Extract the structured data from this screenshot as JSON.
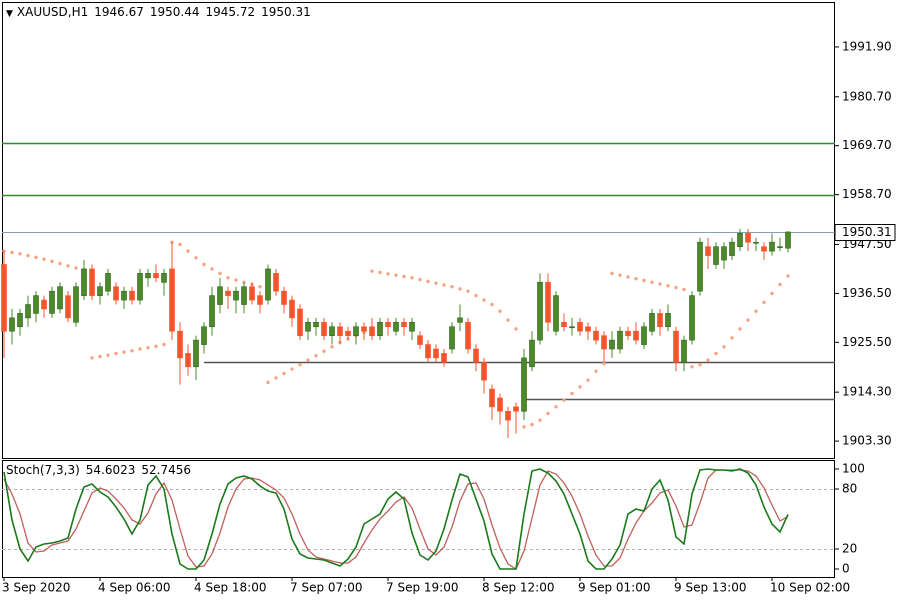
{
  "chart_data": [
    {
      "type": "candlestick",
      "title": "XAUUSD,H1",
      "x": [
        "3 Sep 2020",
        null,
        null,
        null,
        null,
        null,
        null,
        null,
        null,
        null,
        null,
        null,
        "4 Sep 06:00",
        null,
        null,
        null,
        null,
        null,
        null,
        null,
        null,
        null,
        null,
        null,
        "4 Sep 18:00",
        null,
        null,
        null,
        null,
        null,
        null,
        null,
        null,
        null,
        null,
        null,
        "7 Sep 07:00",
        null,
        null,
        null,
        null,
        null,
        null,
        null,
        null,
        null,
        null,
        null,
        "7 Sep 19:00",
        null,
        null,
        null,
        null,
        null,
        null,
        null,
        null,
        null,
        null,
        null,
        "8 Sep 12:00",
        null,
        null,
        null,
        null,
        null,
        null,
        null,
        null,
        null,
        null,
        null,
        "9 Sep 01:00",
        null,
        null,
        null,
        null,
        null,
        null,
        null,
        null,
        null,
        null,
        null,
        "9 Sep 13:00",
        null,
        null,
        null,
        null,
        null,
        null,
        null,
        null,
        null,
        null,
        null,
        "10 Sep 02:00",
        null,
        null
      ],
      "open": [
        1943,
        1928,
        1929,
        1931,
        1932,
        1935,
        1932,
        1933,
        1936,
        1930,
        1936,
        1942,
        1936,
        1937,
        1938,
        1935,
        1937,
        1935,
        1940,
        1941,
        1939,
        1942,
        1928,
        1923,
        1920,
        1925,
        1929,
        1934,
        1937,
        1935,
        1934,
        1938,
        1936,
        1935,
        1941,
        1937,
        1935,
        1933,
        1928,
        1929,
        1930,
        1927,
        1929,
        1928,
        1927,
        1929,
        1929,
        1927,
        1930,
        1928,
        1930,
        1928,
        1927,
        1925,
        1924,
        1923,
        1924,
        1930,
        1930,
        1924,
        1921,
        1915,
        1913,
        1910,
        1911,
        1910,
        1920,
        1926,
        1939,
        1928,
        1930,
        1929,
        1930,
        1929,
        1928,
        1927,
        1924,
        1924,
        1928,
        1928,
        1925,
        1928,
        1932,
        1929,
        1928,
        1921,
        1926,
        1937,
        1947,
        1943,
        1944,
        1945,
        1947,
        1950,
        1948,
        1947,
        1946,
        1947,
        1946.67
      ],
      "high": [
        1946,
        1933,
        1933,
        1936,
        1937,
        1936,
        1938,
        1939,
        1937,
        1939,
        1944,
        1943,
        1939,
        1942,
        1939,
        1938,
        1938,
        1942,
        1942,
        1943,
        1942,
        1948,
        1930,
        1925,
        1927,
        1930,
        1938,
        1940,
        1938,
        1938,
        1939,
        1939,
        1937,
        1943,
        1942,
        1938,
        1936,
        1934,
        1931,
        1931,
        1931,
        1930,
        1930,
        1929,
        1930,
        1930,
        1931,
        1931,
        1931,
        1931,
        1931,
        1931,
        1928,
        1926,
        1925,
        1924,
        1930,
        1934,
        1931,
        1925,
        1922,
        1916,
        1914,
        1911,
        1912,
        1924,
        1928,
        1941,
        1941,
        1937,
        1932,
        1931,
        1931,
        1930,
        1929,
        1928,
        1928,
        1929,
        1929,
        1930,
        1930,
        1933,
        1933,
        1934,
        1929,
        1927,
        1937,
        1949,
        1949,
        1948,
        1948,
        1949,
        1951,
        1951,
        1949,
        1948,
        1950,
        1949,
        1950.44
      ],
      "low": [
        1922,
        1925,
        1927,
        1929,
        1930,
        1931,
        1931,
        1932,
        1930,
        1929,
        1935,
        1935,
        1934,
        1936,
        1934,
        1933,
        1934,
        1934,
        1938,
        1939,
        1936,
        1926,
        1916,
        1918,
        1917,
        1923,
        1927,
        1932,
        1933,
        1932,
        1932,
        1934,
        1932,
        1934,
        1936,
        1932,
        1929,
        1926,
        1926,
        1927,
        1926,
        1925,
        1925,
        1926,
        1925,
        1926,
        1926,
        1926,
        1927,
        1927,
        1927,
        1926,
        1924,
        1921,
        1921,
        1920,
        1923,
        1928,
        1923,
        1919,
        1914,
        1908,
        1907,
        1904,
        1905,
        1908,
        1919,
        1925,
        1928,
        1927,
        1928,
        1927,
        1927,
        1926,
        1925,
        1921,
        1922,
        1923,
        1926,
        1925,
        1924,
        1927,
        1927,
        1928,
        1919,
        1919,
        1925,
        1936,
        1942,
        1942,
        1942,
        1944,
        1946,
        1946,
        1946,
        1944,
        1945,
        1946,
        1945.72
      ],
      "close": [
        1928,
        1931,
        1932,
        1934,
        1936,
        1933,
        1937,
        1938,
        1931,
        1938,
        1942,
        1936,
        1938,
        1941,
        1935,
        1937,
        1935,
        1941,
        1941,
        1940,
        1941,
        1928,
        1922,
        1920,
        1926,
        1929,
        1936,
        1938,
        1936,
        1937,
        1938,
        1935,
        1934,
        1942,
        1937,
        1934,
        1931,
        1927,
        1930,
        1930,
        1927,
        1929,
        1927,
        1927,
        1929,
        1928,
        1927,
        1930,
        1929,
        1930,
        1929,
        1930,
        1925,
        1922,
        1922,
        1921,
        1929,
        1931,
        1924,
        1921,
        1917,
        1911,
        1910,
        1908,
        1910,
        1922,
        1926,
        1939,
        1930,
        1936,
        1929,
        1929,
        1928,
        1928,
        1926,
        1924,
        1926,
        1928,
        1927,
        1926,
        1929,
        1932,
        1929,
        1932,
        1921,
        1926,
        1936,
        1948,
        1945,
        1947,
        1947,
        1948,
        1950,
        1948,
        1948,
        1946,
        1948,
        1947,
        1950.31
      ],
      "up_color": "#4a8a2a",
      "down_color": "#f2552c",
      "ylim": [
        1899.5,
        2002
      ],
      "yticks": [
        {
          "value": 1991.9,
          "label": "1991.90"
        },
        {
          "value": 1980.7,
          "label": "1980.70"
        },
        {
          "value": 1969.7,
          "label": "1969.70"
        },
        {
          "value": 1958.7,
          "label": "1958.70"
        },
        {
          "value": 1947.5,
          "label": "1947.50"
        },
        {
          "value": 1936.5,
          "label": "1936.50"
        },
        {
          "value": 1925.5,
          "label": "1925.50"
        },
        {
          "value": 1914.3,
          "label": "1914.30"
        },
        {
          "value": 1903.3,
          "label": "1903.30"
        }
      ],
      "sar": {
        "color": "#f4a383",
        "values": [
          1946,
          1945.7,
          1945.4,
          1945,
          1944.6,
          1944.2,
          1943.7,
          1943.2,
          1942.7,
          1942.2,
          1941.6,
          1922,
          1922.3,
          1922.6,
          1923,
          1923.3,
          1923.6,
          1924,
          1924.3,
          1924.6,
          1925,
          1948,
          1947.5,
          1946,
          1944.5,
          1943,
          1942,
          1941,
          1940,
          1939.5,
          1939,
          1938.5,
          1938,
          1916.5,
          1917.5,
          1918.5,
          1919.5,
          1920.5,
          1921.5,
          1922.5,
          1923.5,
          1924.5,
          1925.5,
          1926.3,
          1927,
          1927.7,
          1941.5,
          1941.2,
          1940.9,
          1940.6,
          1940.3,
          1940,
          1939.6,
          1939.2,
          1938.8,
          1938.4,
          1938,
          1937.5,
          1937,
          1936,
          1935,
          1934,
          1932.5,
          1930.5,
          1928.5,
          1906.5,
          1907,
          1908,
          1909.5,
          1911,
          1912.5,
          1914,
          1915.5,
          1917,
          1919,
          1920.7,
          1941,
          1940.6,
          1940.2,
          1939.8,
          1939.4,
          1939,
          1938.6,
          1938.2,
          1937.8,
          1937.4,
          1920,
          1920.5,
          1921.5,
          1923,
          1924.5,
          1926.5,
          1928.5,
          1930.5,
          1932.5,
          1934.5,
          1936.5,
          1938.5,
          1940.4
        ]
      },
      "levels": [
        {
          "value": 1970.2,
          "color": "#2e8b2e"
        },
        {
          "value": 1958.7,
          "color": "#2e8b2e"
        },
        {
          "value": 1921.1,
          "color": "#555555",
          "start": 25
        },
        {
          "value": 1912.8,
          "color": "#555555",
          "start": 65
        }
      ]
    },
    {
      "type": "line",
      "title": "Stoch(7,3,3)",
      "ylim": [
        -8,
        109
      ],
      "yticks": [
        100,
        80,
        20,
        0
      ],
      "levels": [
        80,
        20
      ],
      "series": [
        {
          "color": "#1a7a1a",
          "values": [
            97,
            49,
            20,
            8,
            22,
            25,
            26,
            28,
            31,
            60,
            82,
            85,
            77,
            72,
            62,
            50,
            35,
            49,
            84,
            93,
            80,
            35,
            5,
            0,
            0,
            9,
            35,
            65,
            85,
            91,
            93,
            90,
            83,
            78,
            76,
            60,
            30,
            15,
            11,
            10,
            9,
            6,
            3,
            10,
            22,
            45,
            50,
            55,
            70,
            77,
            70,
            36,
            14,
            9,
            18,
            40,
            69,
            95,
            92,
            70,
            48,
            15,
            0,
            0,
            0,
            55,
            98,
            100,
            96,
            88,
            75,
            55,
            35,
            8,
            0,
            0,
            10,
            24,
            55,
            60,
            58,
            80,
            89,
            69,
            32,
            25,
            75,
            99,
            100,
            99,
            99,
            98,
            100,
            96,
            84,
            62,
            45,
            37,
            54.6023
          ]
        },
        {
          "color": "#c0605a",
          "values": [
            90,
            75,
            55,
            26,
            17,
            18,
            24,
            26,
            28,
            40,
            58,
            76,
            81,
            78,
            70,
            61,
            49,
            45,
            56,
            75,
            86,
            69,
            40,
            13,
            2,
            3,
            15,
            36,
            62,
            80,
            90,
            91,
            89,
            84,
            79,
            71,
            55,
            35,
            19,
            12,
            10,
            8,
            6,
            6,
            12,
            26,
            39,
            50,
            58,
            67,
            72,
            61,
            40,
            20,
            14,
            22,
            42,
            68,
            85,
            86,
            70,
            44,
            21,
            5,
            0,
            18,
            51,
            84,
            98,
            95,
            86,
            73,
            55,
            33,
            14,
            3,
            3,
            11,
            30,
            46,
            58,
            66,
            76,
            79,
            63,
            42,
            44,
            66,
            91,
            99,
            99,
            99,
            99,
            98,
            93,
            81,
            64,
            48,
            52.7456
          ]
        }
      ]
    }
  ]
}
